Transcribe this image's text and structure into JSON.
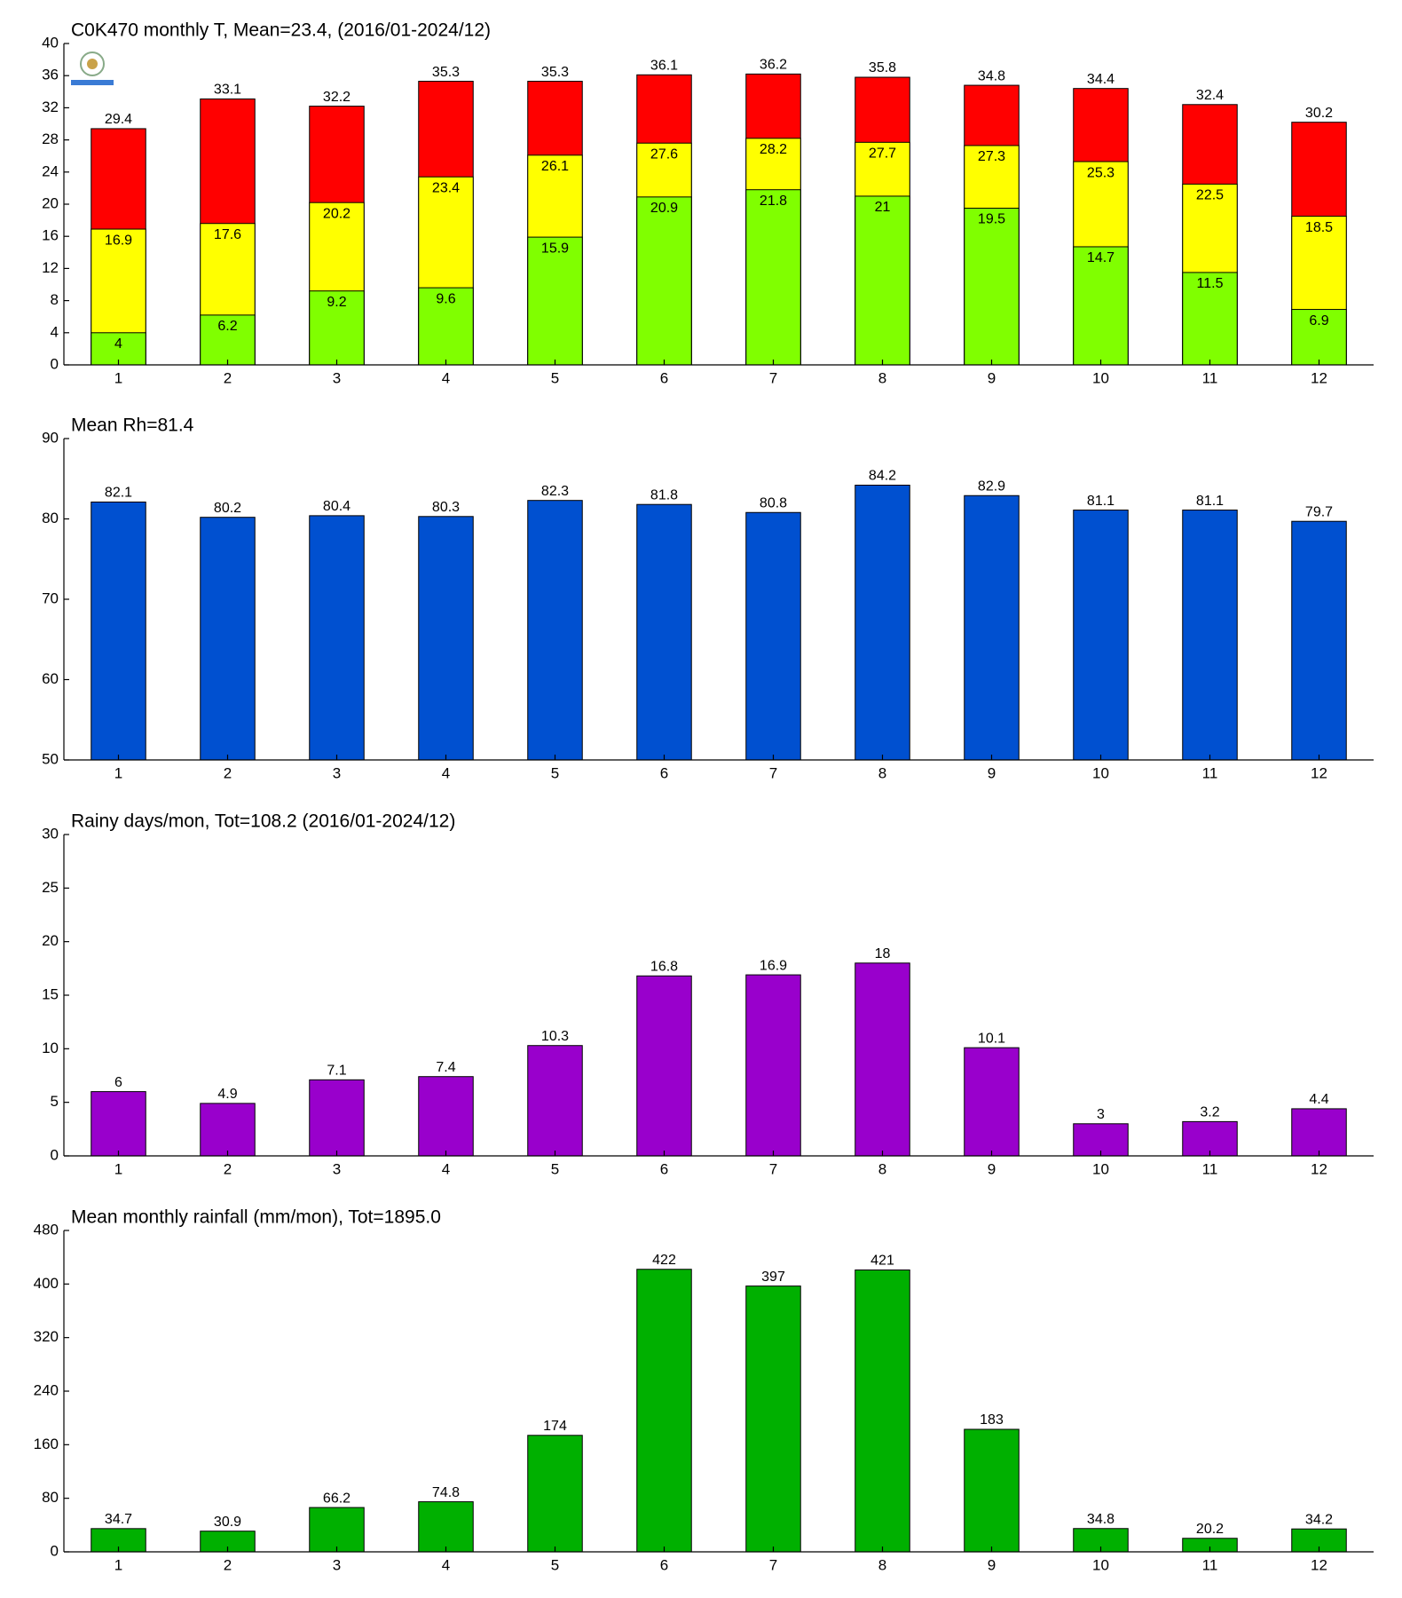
{
  "chart_data": [
    {
      "type": "bar",
      "title": "C0K470 monthly T, Mean=23.4, (2016/01-2024/12)",
      "categories": [
        "1",
        "2",
        "3",
        "4",
        "5",
        "6",
        "7",
        "8",
        "9",
        "10",
        "11",
        "12"
      ],
      "series": [
        {
          "color": "#80ff00",
          "values": [
            4,
            6.2,
            9.2,
            9.6,
            15.9,
            20.9,
            21.8,
            21,
            19.5,
            14.7,
            11.5,
            6.9
          ]
        },
        {
          "color": "#ffff00",
          "values": [
            16.9,
            17.6,
            20.2,
            23.4,
            26.1,
            27.6,
            28.2,
            27.7,
            27.3,
            25.3,
            22.5,
            18.5
          ]
        },
        {
          "color": "#ff0000",
          "values": [
            29.4,
            33.1,
            32.2,
            35.3,
            35.3,
            36.1,
            36.2,
            35.8,
            34.8,
            34.4,
            32.4,
            30.2
          ]
        }
      ],
      "ylim": [
        0,
        40
      ],
      "yticks": [
        0,
        4,
        8,
        12,
        16,
        20,
        24,
        28,
        32,
        36,
        40
      ]
    },
    {
      "type": "bar",
      "title": "Mean Rh=81.4",
      "categories": [
        "1",
        "2",
        "3",
        "4",
        "5",
        "6",
        "7",
        "8",
        "9",
        "10",
        "11",
        "12"
      ],
      "series": [
        {
          "color": "#0050d0",
          "values": [
            82.1,
            80.2,
            80.4,
            80.3,
            82.3,
            81.8,
            80.8,
            84.2,
            82.9,
            81.1,
            81.1,
            79.7
          ]
        }
      ],
      "ylim": [
        50,
        90
      ],
      "yticks": [
        50,
        60,
        70,
        80,
        90
      ]
    },
    {
      "type": "bar",
      "title": "Rainy days/mon, Tot=108.2 (2016/01-2024/12)",
      "categories": [
        "1",
        "2",
        "3",
        "4",
        "5",
        "6",
        "7",
        "8",
        "9",
        "10",
        "11",
        "12"
      ],
      "series": [
        {
          "color": "#9900cc",
          "values": [
            6,
            4.9,
            7.1,
            7.4,
            10.3,
            16.8,
            16.9,
            18,
            10.1,
            3,
            3.2,
            4.4
          ]
        }
      ],
      "ylim": [
        0,
        30
      ],
      "yticks": [
        0,
        5,
        10,
        15,
        20,
        25,
        30
      ]
    },
    {
      "type": "bar",
      "title": "Mean monthly rainfall (mm/mon), Tot=1895.0",
      "categories": [
        "1",
        "2",
        "3",
        "4",
        "5",
        "6",
        "7",
        "8",
        "9",
        "10",
        "11",
        "12"
      ],
      "series": [
        {
          "color": "#00b000",
          "values": [
            34.7,
            30.9,
            66.2,
            74.8,
            174,
            422,
            397,
            421,
            183,
            34.8,
            20.2,
            34.2
          ]
        }
      ],
      "ylim": [
        0,
        480
      ],
      "yticks": [
        0,
        80,
        160,
        240,
        320,
        400,
        480
      ]
    }
  ]
}
